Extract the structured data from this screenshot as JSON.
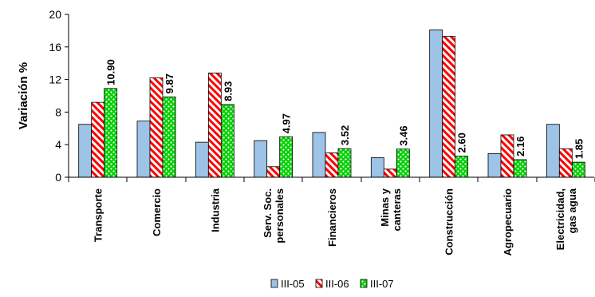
{
  "chart_data": {
    "type": "bar",
    "ylabel": "Variación %",
    "ylim": [
      0,
      20
    ],
    "yticks": [
      0,
      4,
      8,
      12,
      16,
      20
    ],
    "grid": false,
    "legend_position": "bottom",
    "categories": [
      [
        "Transporte"
      ],
      [
        "Comercio"
      ],
      [
        "Industria"
      ],
      [
        "Serv. Soc.",
        "personales"
      ],
      [
        "Financieros"
      ],
      [
        "Minas y",
        "canteras"
      ],
      [
        "Construcción"
      ],
      [
        "Agropecuario"
      ],
      [
        "Electricidad,",
        "gas agua"
      ]
    ],
    "series": [
      {
        "name": "III-05",
        "color": "#9dc3e6",
        "pattern": "solid",
        "values": [
          6.5,
          6.9,
          4.3,
          4.5,
          5.5,
          2.4,
          18.1,
          2.9,
          6.5
        ]
      },
      {
        "name": "III-06",
        "color": "#ff0000",
        "pattern": "diagonal-stripes",
        "values": [
          9.2,
          12.2,
          12.8,
          1.3,
          3.0,
          1.0,
          17.3,
          5.2,
          3.5
        ]
      },
      {
        "name": "III-07",
        "color": "#00d000",
        "pattern": "dots",
        "values": [
          10.9,
          9.87,
          8.93,
          4.97,
          3.52,
          3.46,
          2.6,
          2.16,
          1.85
        ]
      }
    ],
    "data_labels": [
      "10.90",
      "9.87",
      "8.93",
      "4.97",
      "3.52",
      "3.46",
      "2.60",
      "2.16",
      "1.85"
    ]
  }
}
